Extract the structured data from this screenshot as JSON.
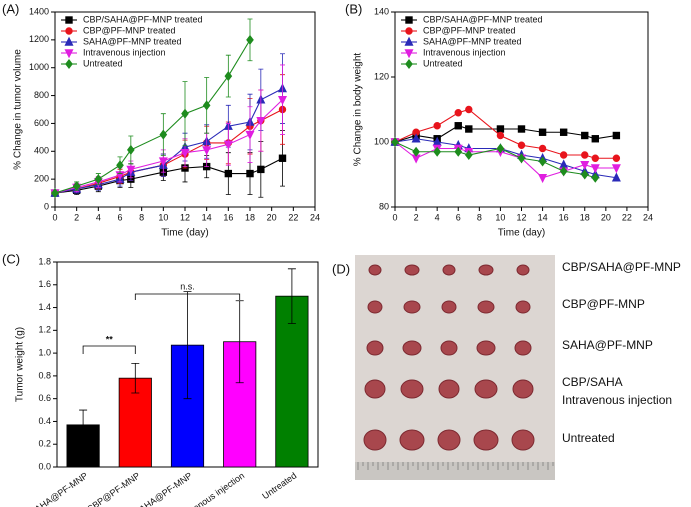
{
  "chart_data": [
    {
      "type": "line",
      "title": "(A)",
      "x_label": "Time (day)",
      "y_label": "% Change in tumor volume",
      "x": [
        0,
        2,
        4,
        6,
        7,
        10,
        12,
        14,
        16,
        18,
        19,
        21
      ],
      "xlim": [
        0,
        24
      ],
      "xticks": [
        0,
        2,
        4,
        6,
        8,
        10,
        12,
        14,
        16,
        18,
        20,
        22,
        24
      ],
      "ylim": [
        0,
        1400
      ],
      "yticks": [
        0,
        200,
        400,
        600,
        800,
        1000,
        1200,
        1400
      ],
      "legend": "upper-left",
      "grid": false,
      "series": [
        {
          "name": "CBP/SAHA@PF-MNP treated",
          "color": "#000000",
          "marker": "square",
          "values": [
            100,
            120,
            150,
            190,
            200,
            250,
            280,
            290,
            240,
            240,
            270,
            350
          ],
          "errors": [
            10,
            30,
            40,
            50,
            60,
            60,
            100,
            80,
            150,
            150,
            200,
            200
          ]
        },
        {
          "name": "CBP@PF-MNP treated",
          "color": "#e8141c",
          "marker": "circle",
          "values": [
            100,
            130,
            170,
            220,
            250,
            300,
            380,
            460,
            460,
            580,
            620,
            700
          ],
          "errors": [
            10,
            30,
            40,
            50,
            60,
            80,
            100,
            120,
            150,
            200,
            220,
            250
          ]
        },
        {
          "name": "SAHA@PF-MNP treated",
          "color": "#2a2ab8",
          "marker": "triangle",
          "values": [
            100,
            130,
            160,
            200,
            250,
            300,
            430,
            470,
            580,
            610,
            770,
            850
          ],
          "errors": [
            10,
            30,
            40,
            50,
            60,
            80,
            100,
            120,
            150,
            200,
            220,
            250
          ]
        },
        {
          "name": "Intravenous injection",
          "color": "#e01ee0",
          "marker": "triangle-down",
          "values": [
            100,
            140,
            180,
            230,
            270,
            330,
            390,
            410,
            450,
            520,
            620,
            770
          ],
          "errors": [
            10,
            30,
            40,
            50,
            60,
            80,
            100,
            120,
            150,
            200,
            220,
            250
          ]
        },
        {
          "name": "Untreated",
          "color": "#1e8c1e",
          "marker": "diamond",
          "values": [
            100,
            150,
            200,
            300,
            410,
            520,
            670,
            730,
            940,
            1200,
            null,
            null
          ],
          "errors": [
            10,
            30,
            40,
            60,
            100,
            150,
            230,
            200,
            150,
            150,
            null,
            null
          ]
        }
      ]
    },
    {
      "type": "line",
      "title": "(B)",
      "x_label": "Time (day)",
      "y_label": "% Change in body weight",
      "x": [
        0,
        2,
        4,
        6,
        7,
        10,
        12,
        14,
        16,
        18,
        19,
        21
      ],
      "xlim": [
        0,
        24
      ],
      "xticks": [
        0,
        2,
        4,
        6,
        8,
        10,
        12,
        14,
        16,
        18,
        20,
        22,
        24
      ],
      "ylim": [
        80,
        140
      ],
      "yticks": [
        80,
        100,
        120,
        140
      ],
      "legend": "upper-left",
      "grid": false,
      "series": [
        {
          "name": "CBP/SAHA@PF-MNP treated",
          "color": "#000000",
          "marker": "square",
          "values": [
            100,
            102,
            101,
            105,
            104,
            104,
            104,
            103,
            103,
            102,
            101,
            102
          ]
        },
        {
          "name": "CBP@PF-MNP treated",
          "color": "#e8141c",
          "marker": "circle",
          "values": [
            100,
            103,
            105,
            109,
            110,
            102,
            99,
            98,
            96,
            96,
            95,
            95
          ]
        },
        {
          "name": "SAHA@PF-MNP treated",
          "color": "#2a2ab8",
          "marker": "triangle",
          "values": [
            100,
            101,
            100,
            99,
            98,
            98,
            96,
            95,
            93,
            91,
            90,
            89
          ]
        },
        {
          "name": "Intravenous injection",
          "color": "#e01ee0",
          "marker": "triangle-down",
          "values": [
            100,
            95,
            98,
            98,
            97,
            97,
            95,
            89,
            91,
            93,
            92,
            92
          ]
        },
        {
          "name": "Untreated",
          "color": "#1e8c1e",
          "marker": "diamond",
          "values": [
            100,
            97,
            97,
            97,
            96,
            98,
            95,
            94,
            91,
            90,
            89,
            null
          ]
        }
      ]
    },
    {
      "type": "bar",
      "title": "(C)",
      "y_label": "Tumor weight (g)",
      "categories": [
        "CBP/SAHA@PF-MNP",
        "CBP@PF-MNP",
        "SAHA@PF-MNP",
        "Intravenous injection",
        "Untreated"
      ],
      "values": [
        0.37,
        0.78,
        1.07,
        1.1,
        1.5
      ],
      "errors": [
        0.13,
        0.13,
        0.47,
        0.36,
        0.24
      ],
      "colors": [
        "#000000",
        "#ff0000",
        "#0000ff",
        "#ff00ff",
        "#008000"
      ],
      "ylim": [
        0,
        1.8
      ],
      "yticks": [
        {
          "value": 0,
          "label": "0.0"
        },
        0.2,
        0.4,
        0.6,
        0.8,
        {
          "value": 1,
          "label": "1.0"
        },
        1.2,
        1.4,
        1.6,
        1.8
      ],
      "annotations": [
        "**",
        "n.s."
      ]
    }
  ],
  "panel_d": {
    "title": "(D)",
    "labels": [
      "CBP/SAHA@PF-MNP",
      "CBP@PF-MNP",
      "SAHA@PF-MNP",
      "CBP/SAHA",
      "Intravenous injection",
      "Untreated"
    ]
  }
}
